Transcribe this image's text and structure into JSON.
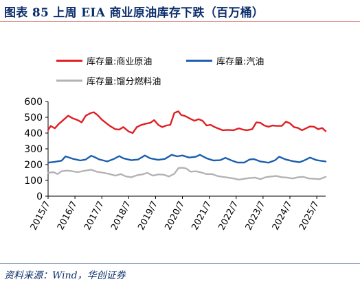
{
  "header": {
    "title": "图表 85   上周 EIA 商业原油库存下跌（百万桶）"
  },
  "footer": {
    "source": "资料来源：Wind，华创证券"
  },
  "chart_data": {
    "type": "line",
    "title": "",
    "xlabel": "",
    "ylabel": "",
    "ylim": [
      0,
      600
    ],
    "yticks": [
      0,
      100,
      200,
      300,
      400,
      500,
      600
    ],
    "x_tick_labels": [
      "2015/7",
      "2016/7",
      "2017/7",
      "2018/7",
      "2019/7",
      "2020/7",
      "2021/7",
      "2022/7",
      "2023/7",
      "2024/7",
      "2025/7"
    ],
    "x_domain": [
      2015.5,
      2025.83
    ],
    "grid": false,
    "legend_placement": "top",
    "series": [
      {
        "name": "库存量:商业原油",
        "color": "#e01e22",
        "x": [
          2015.5,
          2015.6,
          2015.75,
          2015.9,
          2016.1,
          2016.25,
          2016.4,
          2016.6,
          2016.75,
          2016.9,
          2017.1,
          2017.2,
          2017.35,
          2017.5,
          2017.65,
          2017.8,
          2018.0,
          2018.15,
          2018.3,
          2018.5,
          2018.65,
          2018.8,
          2018.95,
          2019.1,
          2019.3,
          2019.45,
          2019.6,
          2019.75,
          2019.9,
          2020.05,
          2020.2,
          2020.35,
          2020.45,
          2020.6,
          2020.8,
          2020.95,
          2021.1,
          2021.25,
          2021.4,
          2021.55,
          2021.7,
          2021.85,
          2022.0,
          2022.2,
          2022.4,
          2022.6,
          2022.75,
          2022.9,
          2023.1,
          2023.25,
          2023.4,
          2023.55,
          2023.7,
          2023.85,
          2024.0,
          2024.2,
          2024.35,
          2024.5,
          2024.65,
          2024.8,
          2024.95,
          2025.1,
          2025.25,
          2025.4,
          2025.55,
          2025.7,
          2025.83
        ],
        "y": [
          420,
          445,
          430,
          458,
          488,
          510,
          495,
          482,
          468,
          510,
          528,
          532,
          512,
          485,
          465,
          445,
          425,
          422,
          438,
          410,
          400,
          438,
          450,
          458,
          465,
          482,
          452,
          438,
          448,
          452,
          528,
          538,
          515,
          508,
          490,
          478,
          488,
          478,
          448,
          452,
          438,
          428,
          418,
          420,
          418,
          430,
          422,
          418,
          425,
          468,
          465,
          448,
          440,
          448,
          445,
          445,
          472,
          462,
          438,
          432,
          418,
          430,
          442,
          440,
          425,
          432,
          412
        ]
      },
      {
        "name": "库存量:汽油",
        "color": "#1b5fae",
        "x": [
          2015.5,
          2015.75,
          2016.0,
          2016.15,
          2016.4,
          2016.7,
          2016.9,
          2017.1,
          2017.2,
          2017.4,
          2017.7,
          2017.95,
          2018.15,
          2018.3,
          2018.6,
          2018.85,
          2019.1,
          2019.3,
          2019.6,
          2019.85,
          2020.1,
          2020.3,
          2020.5,
          2020.75,
          2021.0,
          2021.15,
          2021.4,
          2021.65,
          2021.9,
          2022.1,
          2022.35,
          2022.55,
          2022.8,
          2023.0,
          2023.15,
          2023.4,
          2023.7,
          2023.95,
          2024.1,
          2024.35,
          2024.6,
          2024.85,
          2025.05,
          2025.25,
          2025.5,
          2025.83
        ],
        "y": [
          212,
          218,
          225,
          252,
          238,
          226,
          232,
          256,
          250,
          233,
          220,
          236,
          254,
          240,
          228,
          232,
          258,
          240,
          230,
          236,
          262,
          252,
          258,
          245,
          250,
          262,
          240,
          226,
          228,
          243,
          225,
          213,
          213,
          232,
          235,
          220,
          212,
          228,
          250,
          232,
          222,
          215,
          228,
          245,
          228,
          220
        ]
      },
      {
        "name": "库存量:馏分燃料油",
        "color": "#b3b3b3",
        "x": [
          2015.5,
          2015.7,
          2015.85,
          2016.0,
          2016.2,
          2016.4,
          2016.6,
          2016.9,
          2017.1,
          2017.3,
          2017.5,
          2017.8,
          2018.0,
          2018.2,
          2018.4,
          2018.6,
          2018.8,
          2019.0,
          2019.2,
          2019.4,
          2019.6,
          2019.8,
          2020.0,
          2020.2,
          2020.35,
          2020.5,
          2020.65,
          2020.8,
          2021.0,
          2021.2,
          2021.4,
          2021.6,
          2021.8,
          2022.0,
          2022.2,
          2022.4,
          2022.6,
          2022.8,
          2023.0,
          2023.2,
          2023.4,
          2023.6,
          2023.8,
          2024.0,
          2024.2,
          2024.4,
          2024.6,
          2024.8,
          2025.0,
          2025.2,
          2025.4,
          2025.6,
          2025.83
        ],
        "y": [
          148,
          152,
          140,
          158,
          162,
          158,
          152,
          162,
          168,
          155,
          150,
          140,
          130,
          140,
          125,
          120,
          132,
          138,
          148,
          130,
          138,
          136,
          125,
          142,
          178,
          180,
          175,
          155,
          158,
          150,
          140,
          140,
          128,
          122,
          118,
          112,
          105,
          110,
          115,
          118,
          108,
          120,
          125,
          128,
          120,
          118,
          112,
          120,
          122,
          112,
          110,
          108,
          122
        ]
      }
    ]
  }
}
